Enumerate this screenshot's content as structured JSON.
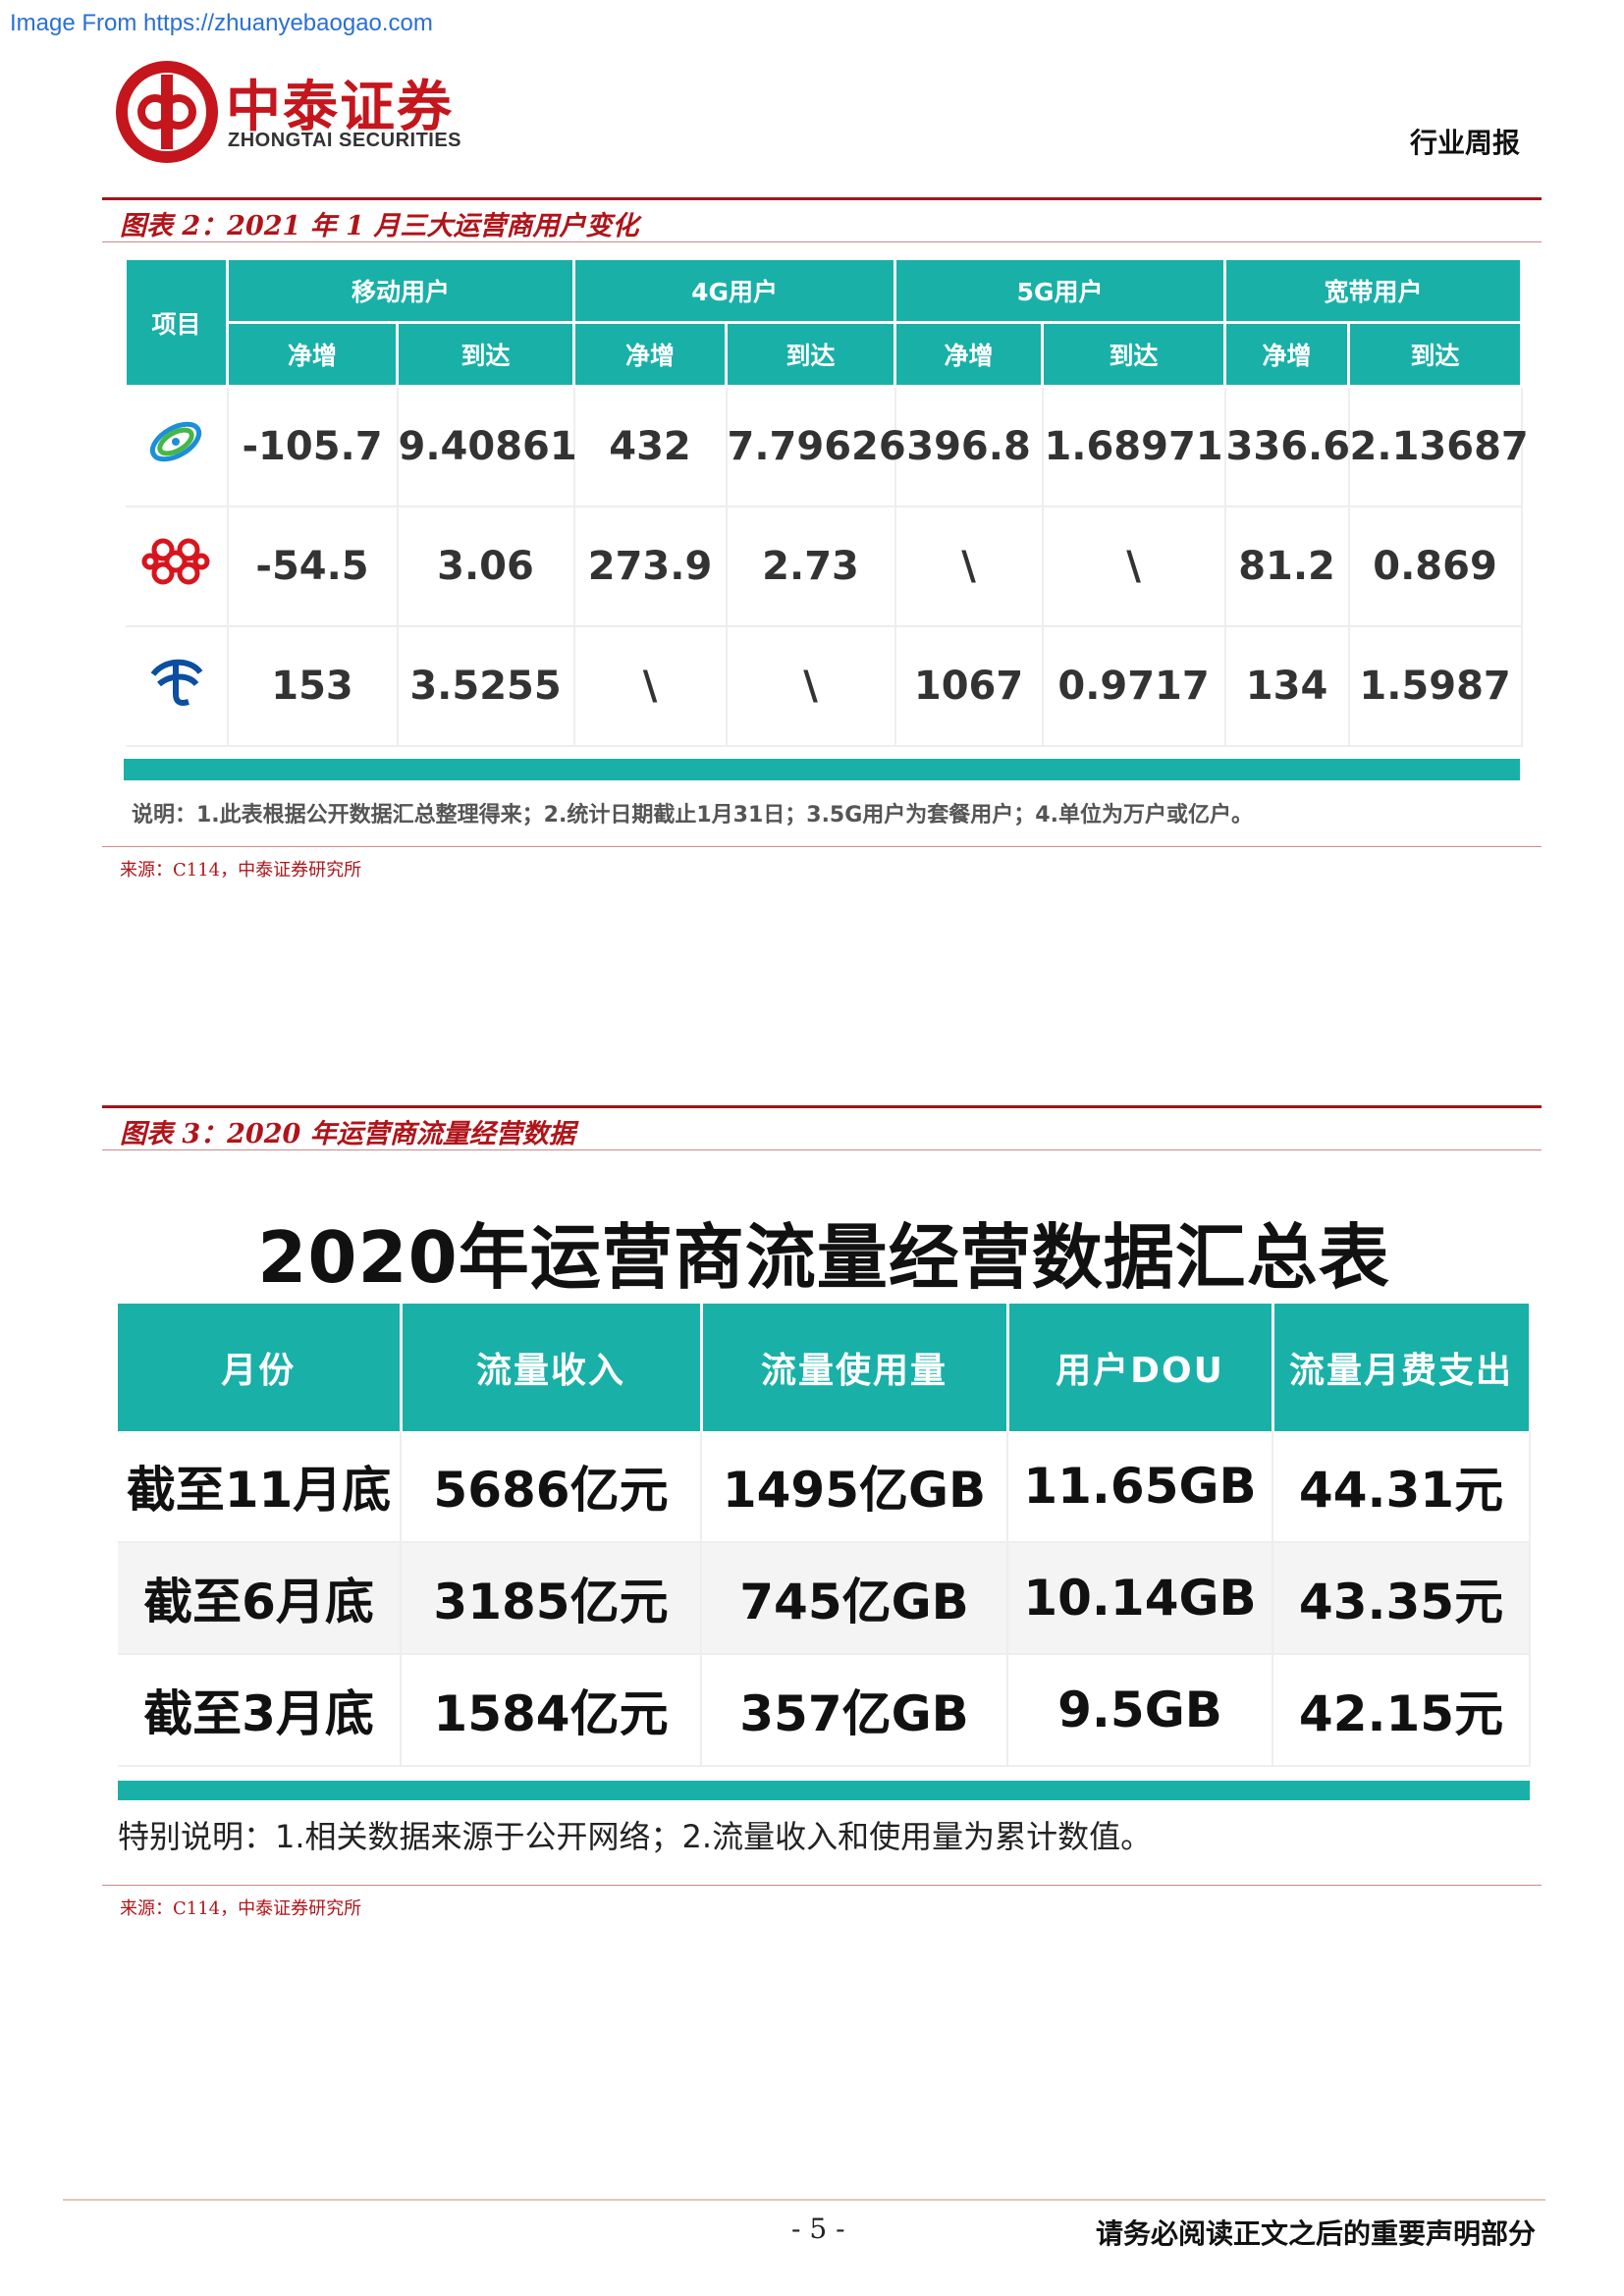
{
  "watermark_url": "Image From https://zhuanyebaogao.com",
  "header": {
    "logo_cn": "中泰证券",
    "logo_en": "ZHONGTAI SECURITIES",
    "report_type": "行业周报",
    "brand_color": "#c4161c"
  },
  "figure2": {
    "title": "图表 2：2021 年 1 月三大运营商用户变化",
    "item_header": "项目",
    "groups": [
      "移动用户",
      "4G用户",
      "5G用户",
      "宽带用户"
    ],
    "subheaders": [
      "净增",
      "到达",
      "净增",
      "到达",
      "净增",
      "到达",
      "净增",
      "到达"
    ],
    "rows": [
      {
        "operator_icon": "china-mobile-logo",
        "values": [
          "-105.7",
          "9.40861",
          "432",
          "7.79626",
          "396.8",
          "1.68971",
          "336.6",
          "2.13687"
        ]
      },
      {
        "operator_icon": "china-unicom-logo",
        "values": [
          "-54.5",
          "3.06",
          "273.9",
          "2.73",
          "\\",
          "\\",
          "81.2",
          "0.869"
        ]
      },
      {
        "operator_icon": "china-telecom-logo",
        "values": [
          "153",
          "3.5255",
          "\\",
          "\\",
          "1067",
          "0.9717",
          "134",
          "1.5987"
        ]
      }
    ],
    "note": "说明：1.此表根据公开数据汇总整理得来；2.统计日期截止1月31日；3.5G用户为套餐用户；4.单位为万户或亿户。",
    "source": "来源：C114，中泰证券研究所",
    "accent_color": "#19b0a8"
  },
  "figure3": {
    "title": "图表 3：2020 年运营商流量经营数据",
    "heading": "2020年运营商流量经营数据汇总表",
    "columns": [
      "月份",
      "流量收入",
      "流量使用量",
      "用户DOU",
      "流量月费支出"
    ],
    "rows": [
      [
        "截至11月底",
        "5686亿元",
        "1495亿GB",
        "11.65GB",
        "44.31元"
      ],
      [
        "截至6月底",
        "3185亿元",
        "745亿GB",
        "10.14GB",
        "43.35元"
      ],
      [
        "截至3月底",
        "1584亿元",
        "357亿GB",
        "9.5GB",
        "42.15元"
      ]
    ],
    "note": "特别说明：1.相关数据来源于公开网络；2.流量收入和使用量为累计数值。",
    "source": "来源：C114，中泰证券研究所"
  },
  "footer": {
    "page_number": "- 5 -",
    "disclaimer": "请务必阅读正文之后的重要声明部分"
  }
}
